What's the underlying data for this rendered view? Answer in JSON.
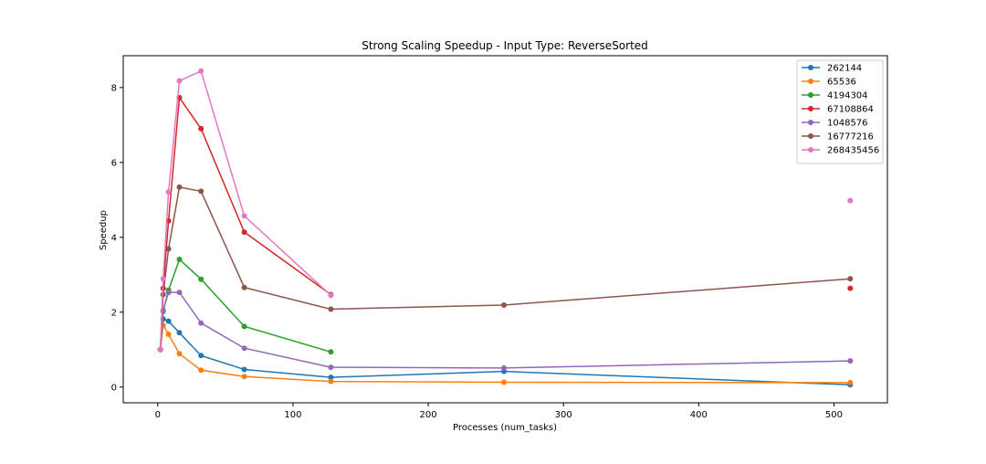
{
  "chart_data": {
    "type": "line",
    "title": "Strong Scaling Speedup - Input Type: ReverseSorted",
    "xlabel": "Processes (num_tasks)",
    "ylabel": "Speedup",
    "xlim": [
      -25.5,
      539.5
    ],
    "ylim": [
      -0.42,
      8.85
    ],
    "xticks": [
      0,
      100,
      200,
      300,
      400,
      500
    ],
    "yticks": [
      0,
      2,
      4,
      6,
      8
    ],
    "grid": false,
    "legend_position": "top-right",
    "series": [
      {
        "name": "262144",
        "color": "#1f77b4",
        "points": [
          [
            2,
            1.0
          ],
          [
            4,
            1.82
          ],
          [
            8,
            1.76
          ],
          [
            16,
            1.45
          ],
          [
            32,
            0.84
          ],
          [
            64,
            0.47
          ],
          [
            128,
            0.26
          ],
          [
            256,
            0.42
          ],
          [
            512,
            0.06
          ]
        ]
      },
      {
        "name": "65536",
        "color": "#ff7f0e",
        "points": [
          [
            2,
            1.0
          ],
          [
            4,
            1.65
          ],
          [
            8,
            1.41
          ],
          [
            16,
            0.89
          ],
          [
            32,
            0.45
          ],
          [
            64,
            0.28
          ],
          [
            128,
            0.15
          ],
          [
            256,
            0.13
          ],
          [
            512,
            0.12
          ]
        ]
      },
      {
        "name": "4194304",
        "color": "#2ca02c",
        "points": [
          [
            2,
            1.0
          ],
          [
            4,
            2.02
          ],
          [
            8,
            2.59
          ],
          [
            16,
            3.41
          ],
          [
            32,
            2.88
          ],
          [
            64,
            1.62
          ],
          [
            128,
            0.94
          ]
        ]
      },
      {
        "name": "67108864",
        "color": "#d62728",
        "points": [
          [
            2,
            1.0
          ],
          [
            4,
            2.64
          ],
          [
            8,
            4.44
          ],
          [
            16,
            7.73
          ],
          [
            32,
            6.9
          ],
          [
            64,
            4.14
          ],
          [
            128,
            2.47
          ],
          [
            512,
            2.64
          ]
        ]
      },
      {
        "name": "1048576",
        "color": "#9467bd",
        "points": [
          [
            2,
            1.0
          ],
          [
            4,
            2.05
          ],
          [
            8,
            2.53
          ],
          [
            16,
            2.53
          ],
          [
            32,
            1.71
          ],
          [
            64,
            1.04
          ],
          [
            128,
            0.53
          ],
          [
            256,
            0.51
          ],
          [
            512,
            0.7
          ]
        ]
      },
      {
        "name": "16777216",
        "color": "#8c564b",
        "points": [
          [
            2,
            1.0
          ],
          [
            4,
            2.47
          ],
          [
            8,
            3.69
          ],
          [
            16,
            5.34
          ],
          [
            32,
            5.23
          ],
          [
            64,
            2.66
          ],
          [
            128,
            2.08
          ],
          [
            256,
            2.19
          ],
          [
            512,
            2.89
          ]
        ]
      },
      {
        "name": "268435456",
        "color": "#e377c2",
        "points": [
          [
            2,
            1.0
          ],
          [
            4,
            2.89
          ],
          [
            8,
            5.21
          ],
          [
            16,
            8.18
          ],
          [
            32,
            8.44
          ],
          [
            64,
            4.57
          ],
          [
            128,
            2.45
          ],
          [
            512,
            4.98
          ]
        ]
      }
    ]
  }
}
